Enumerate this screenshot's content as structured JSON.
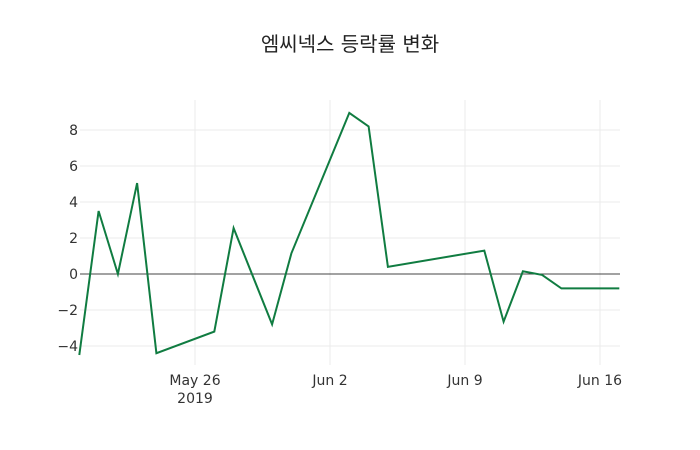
{
  "chart_data": {
    "type": "line",
    "title": "엠씨넥스 등락률 변화",
    "xlabel": "",
    "ylabel": "",
    "ylim": [
      -5,
      9.5
    ],
    "grid": true,
    "legend": "none",
    "x_ticks": [
      "May 26\n2019",
      "Jun 2",
      "Jun 9",
      "Jun 16"
    ],
    "y_ticks": [
      -4,
      -2,
      0,
      2,
      4,
      6,
      8
    ],
    "series": [
      {
        "name": "등락률",
        "color": "#107c41",
        "x": [
          "2019-05-20",
          "2019-05-21",
          "2019-05-22",
          "2019-05-23",
          "2019-05-24",
          "2019-05-27",
          "2019-05-28",
          "2019-05-30",
          "2019-05-31",
          "2019-06-03",
          "2019-06-04",
          "2019-06-05",
          "2019-06-10",
          "2019-06-11",
          "2019-06-12",
          "2019-06-13",
          "2019-06-14",
          "2019-06-17"
        ],
        "values": [
          -4.5,
          3.5,
          0.0,
          5.05,
          -4.4,
          -3.2,
          2.55,
          -2.8,
          1.15,
          8.95,
          8.2,
          0.4,
          1.3,
          -2.65,
          0.15,
          -0.05,
          -0.8,
          -0.8
        ]
      }
    ]
  }
}
